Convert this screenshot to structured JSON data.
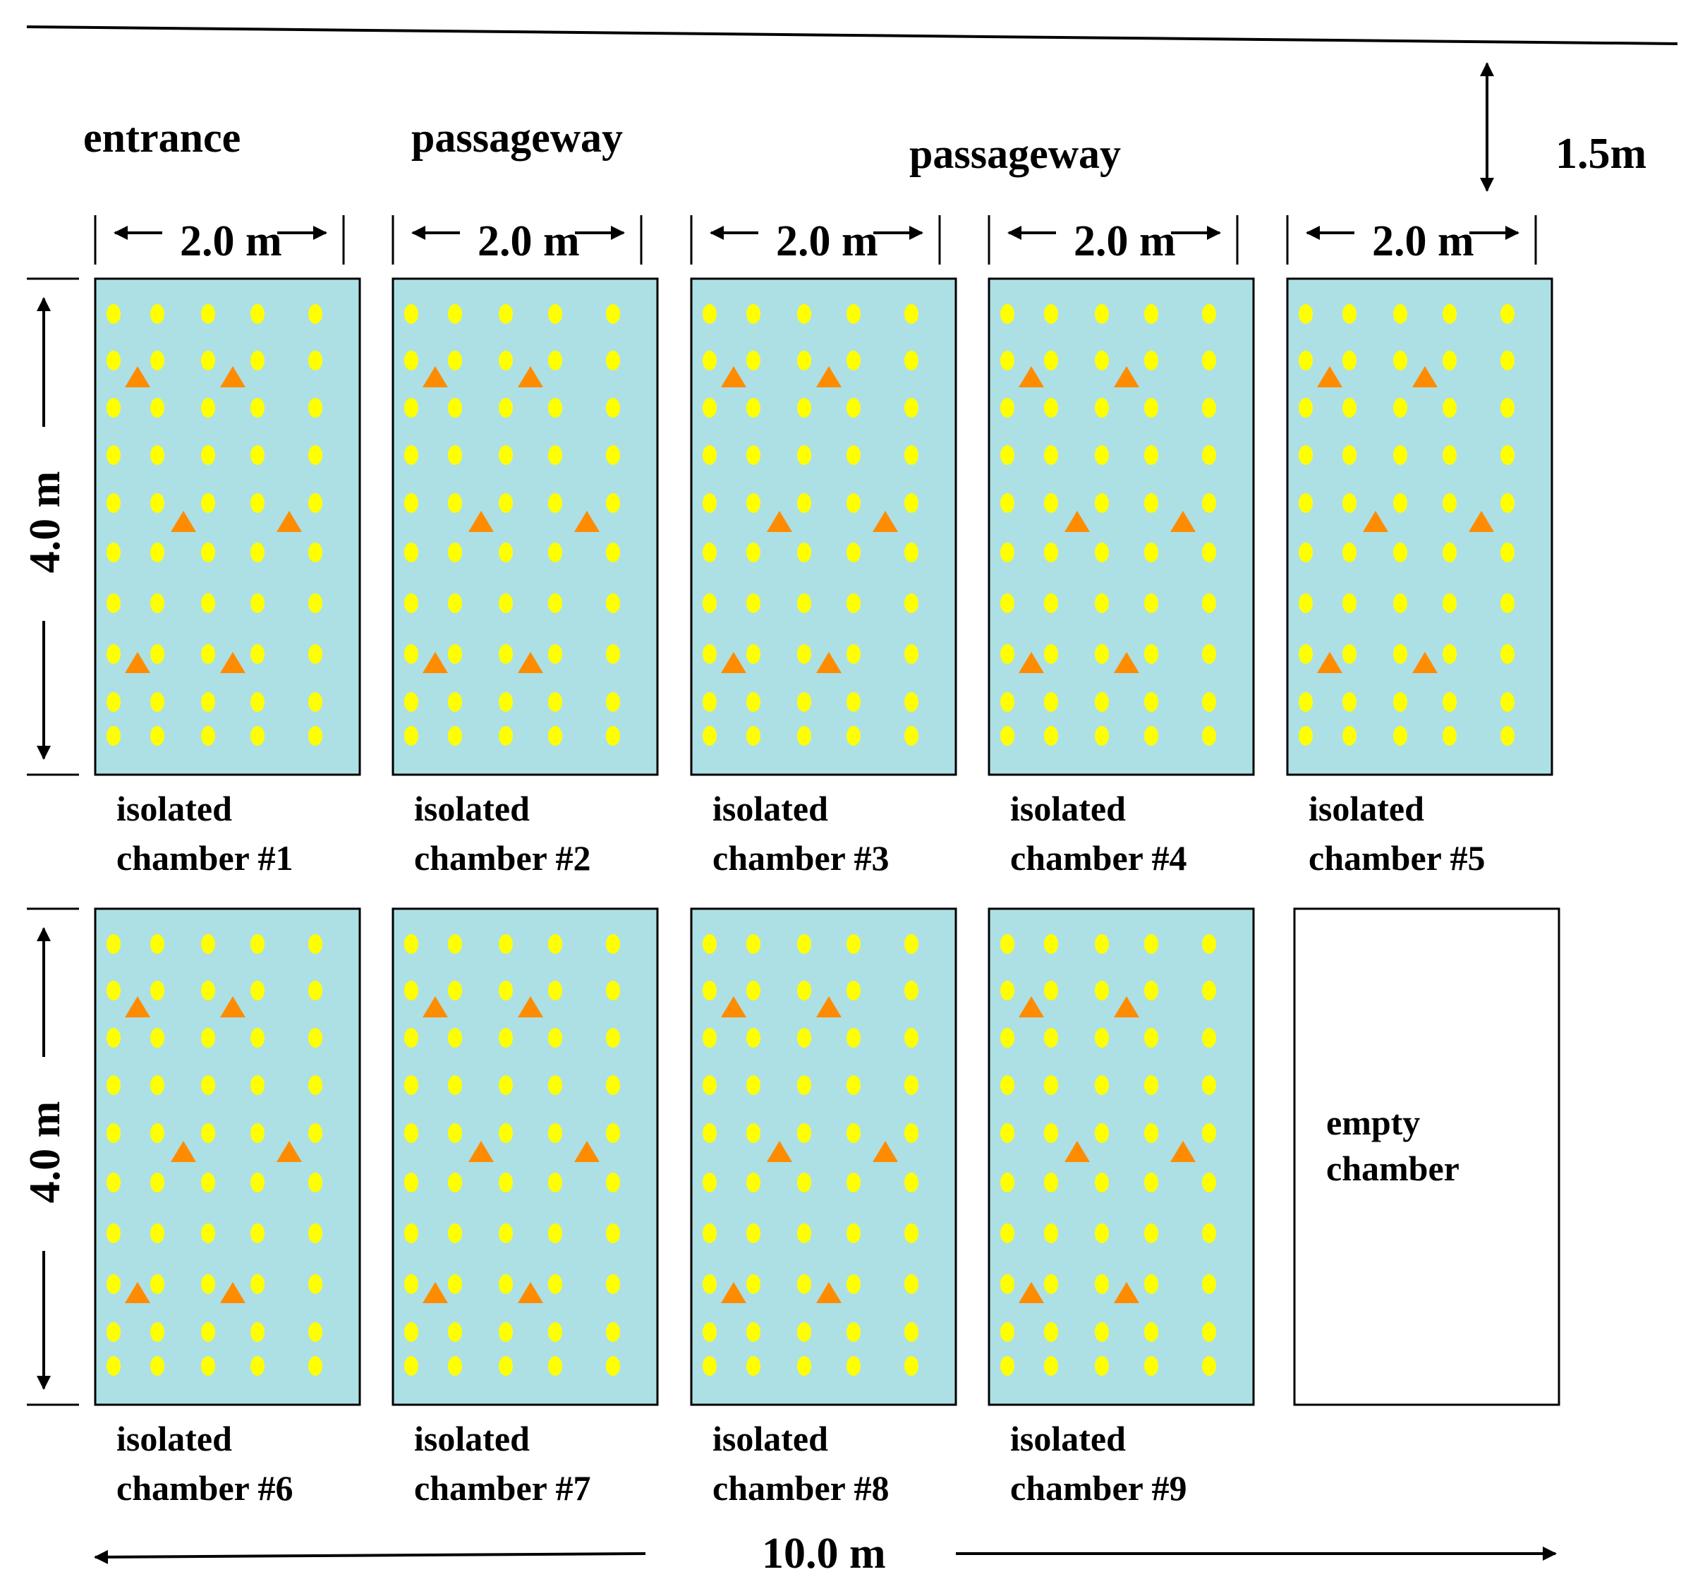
{
  "colors": {
    "chamber_fill": "#ade0e4",
    "empty_fill": "#ffffff",
    "plant_dot": "#ffff00",
    "marker_triangle": "#ff8c00",
    "line": "#000000"
  },
  "labels": {
    "entrance": "entrance",
    "passageway_1": "passageway",
    "passageway_2": "passageway",
    "setback": "1.5m",
    "chamber_width": "2.0 m",
    "chamber_length": "4.0 m",
    "total_width": "10.0 m"
  },
  "chambers": [
    {
      "line1": "isolated",
      "line2": "chamber #1",
      "planted": true
    },
    {
      "line1": "isolated",
      "line2": "chamber #2",
      "planted": true
    },
    {
      "line1": "isolated",
      "line2": "chamber #3",
      "planted": true
    },
    {
      "line1": "isolated",
      "line2": "chamber #4",
      "planted": true
    },
    {
      "line1": "isolated",
      "line2": "chamber #5",
      "planted": true
    },
    {
      "line1": "isolated",
      "line2": "chamber #6",
      "planted": true
    },
    {
      "line1": "isolated",
      "line2": "chamber #7",
      "planted": true
    },
    {
      "line1": "isolated",
      "line2": "chamber #8",
      "planted": true
    },
    {
      "line1": "isolated",
      "line2": "chamber #9",
      "planted": true
    },
    {
      "line1": "empty",
      "line2": "chamber",
      "planted": false
    }
  ],
  "icons": {
    "plant": "plant-dot-icon",
    "marker": "triangle-marker-icon"
  }
}
